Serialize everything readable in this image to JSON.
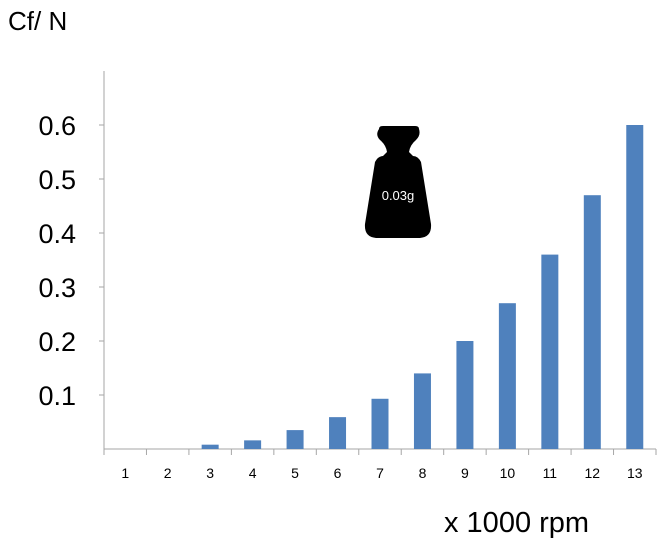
{
  "chart_data": {
    "type": "bar",
    "ylabel": "Cf/ N",
    "xlabel": "x 1000 rpm",
    "categories": [
      "1",
      "2",
      "3",
      "4",
      "5",
      "6",
      "7",
      "8",
      "9",
      "10",
      "11",
      "12",
      "13"
    ],
    "values": [
      0.0,
      0.0,
      0.008,
      0.016,
      0.035,
      0.059,
      0.093,
      0.14,
      0.2,
      0.27,
      0.36,
      0.47,
      0.6
    ],
    "ylim": [
      0,
      0.7
    ],
    "yticks": [
      "0.1",
      "0.2",
      "0.3",
      "0.4",
      "0.5",
      "0.6"
    ],
    "ytick_values": [
      0.1,
      0.2,
      0.3,
      0.4,
      0.5,
      0.6
    ],
    "grid": false,
    "bar_color": "#4f81bd",
    "axis_color": "#a6a6a6",
    "annotation": {
      "icon": "weight-icon",
      "label": "0.03g",
      "color": "#000000"
    }
  }
}
